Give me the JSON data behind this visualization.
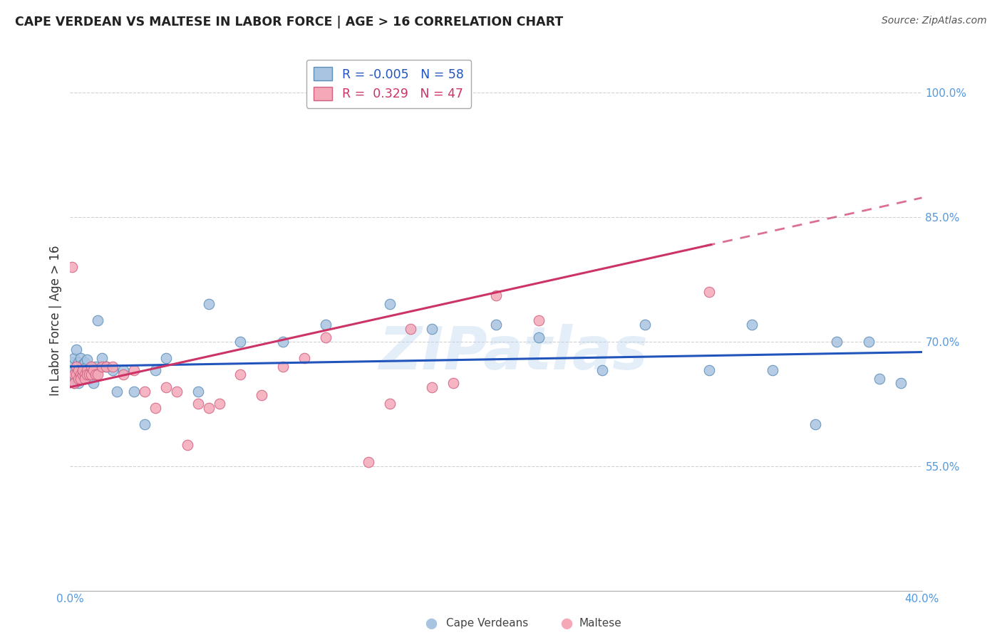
{
  "title": "CAPE VERDEAN VS MALTESE IN LABOR FORCE | AGE > 16 CORRELATION CHART",
  "source": "Source: ZipAtlas.com",
  "ylabel": "In Labor Force | Age > 16",
  "xlim": [
    0.0,
    0.4
  ],
  "ylim": [
    0.4,
    1.05
  ],
  "ytick_vals": [
    0.55,
    0.7,
    0.85,
    1.0
  ],
  "ytick_labels": [
    "55.0%",
    "70.0%",
    "85.0%",
    "100.0%"
  ],
  "xtick_vals": [
    0.0,
    0.05,
    0.1,
    0.15,
    0.2,
    0.25,
    0.3,
    0.35,
    0.4
  ],
  "xtick_labels": [
    "0.0%",
    "",
    "",
    "",
    "",
    "",
    "",
    "",
    "40.0%"
  ],
  "cv_color_fill": "#a8c4e0",
  "cv_color_edge": "#5b8db8",
  "mt_color_fill": "#f4a8b8",
  "mt_color_edge": "#d06080",
  "cv_line_color": "#2255bb",
  "mt_line_color": "#cc3366",
  "tick_color": "#5599dd",
  "grid_color": "#cccccc",
  "watermark": "ZIPatlas",
  "cv_R": -0.005,
  "cv_N": 58,
  "mt_R": 0.329,
  "mt_N": 47,
  "cv_x": [
    0.001,
    0.001,
    0.002,
    0.002,
    0.002,
    0.003,
    0.003,
    0.003,
    0.004,
    0.004,
    0.004,
    0.005,
    0.005,
    0.005,
    0.005,
    0.006,
    0.006,
    0.006,
    0.007,
    0.007,
    0.007,
    0.008,
    0.008,
    0.009,
    0.009,
    0.01,
    0.01,
    0.011,
    0.012,
    0.013,
    0.015,
    0.017,
    0.02,
    0.022,
    0.025,
    0.03,
    0.035,
    0.04,
    0.045,
    0.06,
    0.065,
    0.08,
    0.1,
    0.12,
    0.15,
    0.17,
    0.2,
    0.22,
    0.25,
    0.27,
    0.3,
    0.32,
    0.33,
    0.35,
    0.36,
    0.375,
    0.38,
    0.39
  ],
  "cv_y": [
    0.675,
    0.66,
    0.68,
    0.665,
    0.65,
    0.67,
    0.69,
    0.655,
    0.675,
    0.66,
    0.65,
    0.668,
    0.68,
    0.67,
    0.655,
    0.672,
    0.66,
    0.665,
    0.675,
    0.668,
    0.66,
    0.678,
    0.66,
    0.665,
    0.655,
    0.665,
    0.658,
    0.65,
    0.67,
    0.725,
    0.68,
    0.67,
    0.665,
    0.64,
    0.665,
    0.64,
    0.6,
    0.665,
    0.68,
    0.64,
    0.745,
    0.7,
    0.7,
    0.72,
    0.745,
    0.715,
    0.72,
    0.705,
    0.665,
    0.72,
    0.665,
    0.72,
    0.665,
    0.6,
    0.7,
    0.7,
    0.655,
    0.65
  ],
  "mt_x": [
    0.001,
    0.002,
    0.002,
    0.003,
    0.003,
    0.004,
    0.004,
    0.005,
    0.005,
    0.006,
    0.006,
    0.007,
    0.007,
    0.008,
    0.008,
    0.009,
    0.01,
    0.01,
    0.011,
    0.012,
    0.013,
    0.015,
    0.017,
    0.02,
    0.025,
    0.03,
    0.035,
    0.04,
    0.045,
    0.05,
    0.055,
    0.06,
    0.065,
    0.07,
    0.08,
    0.09,
    0.1,
    0.11,
    0.12,
    0.14,
    0.15,
    0.16,
    0.17,
    0.18,
    0.2,
    0.22,
    0.3
  ],
  "mt_y": [
    0.79,
    0.66,
    0.65,
    0.67,
    0.66,
    0.655,
    0.665,
    0.66,
    0.655,
    0.66,
    0.665,
    0.66,
    0.655,
    0.665,
    0.66,
    0.66,
    0.67,
    0.66,
    0.665,
    0.66,
    0.66,
    0.67,
    0.67,
    0.67,
    0.66,
    0.665,
    0.64,
    0.62,
    0.645,
    0.64,
    0.575,
    0.625,
    0.62,
    0.625,
    0.66,
    0.635,
    0.67,
    0.68,
    0.705,
    0.555,
    0.625,
    0.715,
    0.645,
    0.65,
    0.755,
    0.725,
    0.76
  ]
}
